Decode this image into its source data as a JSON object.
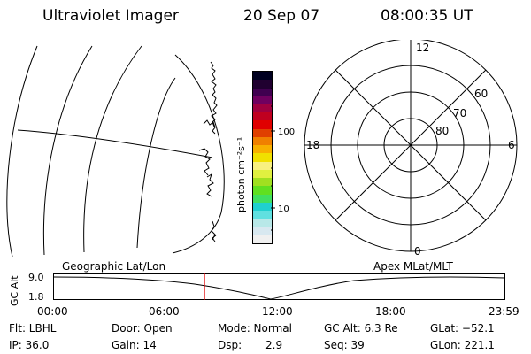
{
  "header": {
    "title": "Ultraviolet Imager",
    "date": "20 Sep 07",
    "time": "08:00:35 UT"
  },
  "colorbar": {
    "unit_label": "photon cm⁻²s⁻¹",
    "ticks": [
      "100",
      "10"
    ],
    "colors": [
      "#f0f0f0",
      "#d8e8f0",
      "#b8e8e8",
      "#60e0e0",
      "#20d0d0",
      "#40e060",
      "#60e020",
      "#a0e020",
      "#e0f040",
      "#f8f080",
      "#f0e000",
      "#f8b000",
      "#f08000",
      "#e04000",
      "#e00000",
      "#c00020",
      "#a00040",
      "#700060",
      "#400050",
      "#200030",
      "#000020"
    ]
  },
  "polar": {
    "labels": {
      "top": "12",
      "bottom": "0",
      "left": "18",
      "right": "6"
    },
    "ring_labels": [
      "60",
      "70",
      "80"
    ]
  },
  "timeline": {
    "left_label": "Geographic Lat/Lon",
    "right_label": "Apex MLat/MLT",
    "y_axis_label": "GC Alt",
    "y_ticks": [
      "9.0",
      "1.8"
    ],
    "x_ticks": [
      "00:00",
      "06:00",
      "12:00",
      "18:00",
      "23:59"
    ],
    "marker_color": "#e00000",
    "marker_time": "08:00"
  },
  "info": {
    "flt": "Flt: LBHL",
    "ip": "IP: 36.0",
    "door": "Door: Open",
    "gain": "Gain: 14",
    "mode": "Mode: Normal",
    "dsp_label": "Dsp:",
    "dsp_value": "2.9",
    "gc_alt": "GC Alt: 6.3 Re",
    "seq": "Seq: 39",
    "glat": "GLat: −52.1",
    "glon": "GLon: 221.1"
  }
}
